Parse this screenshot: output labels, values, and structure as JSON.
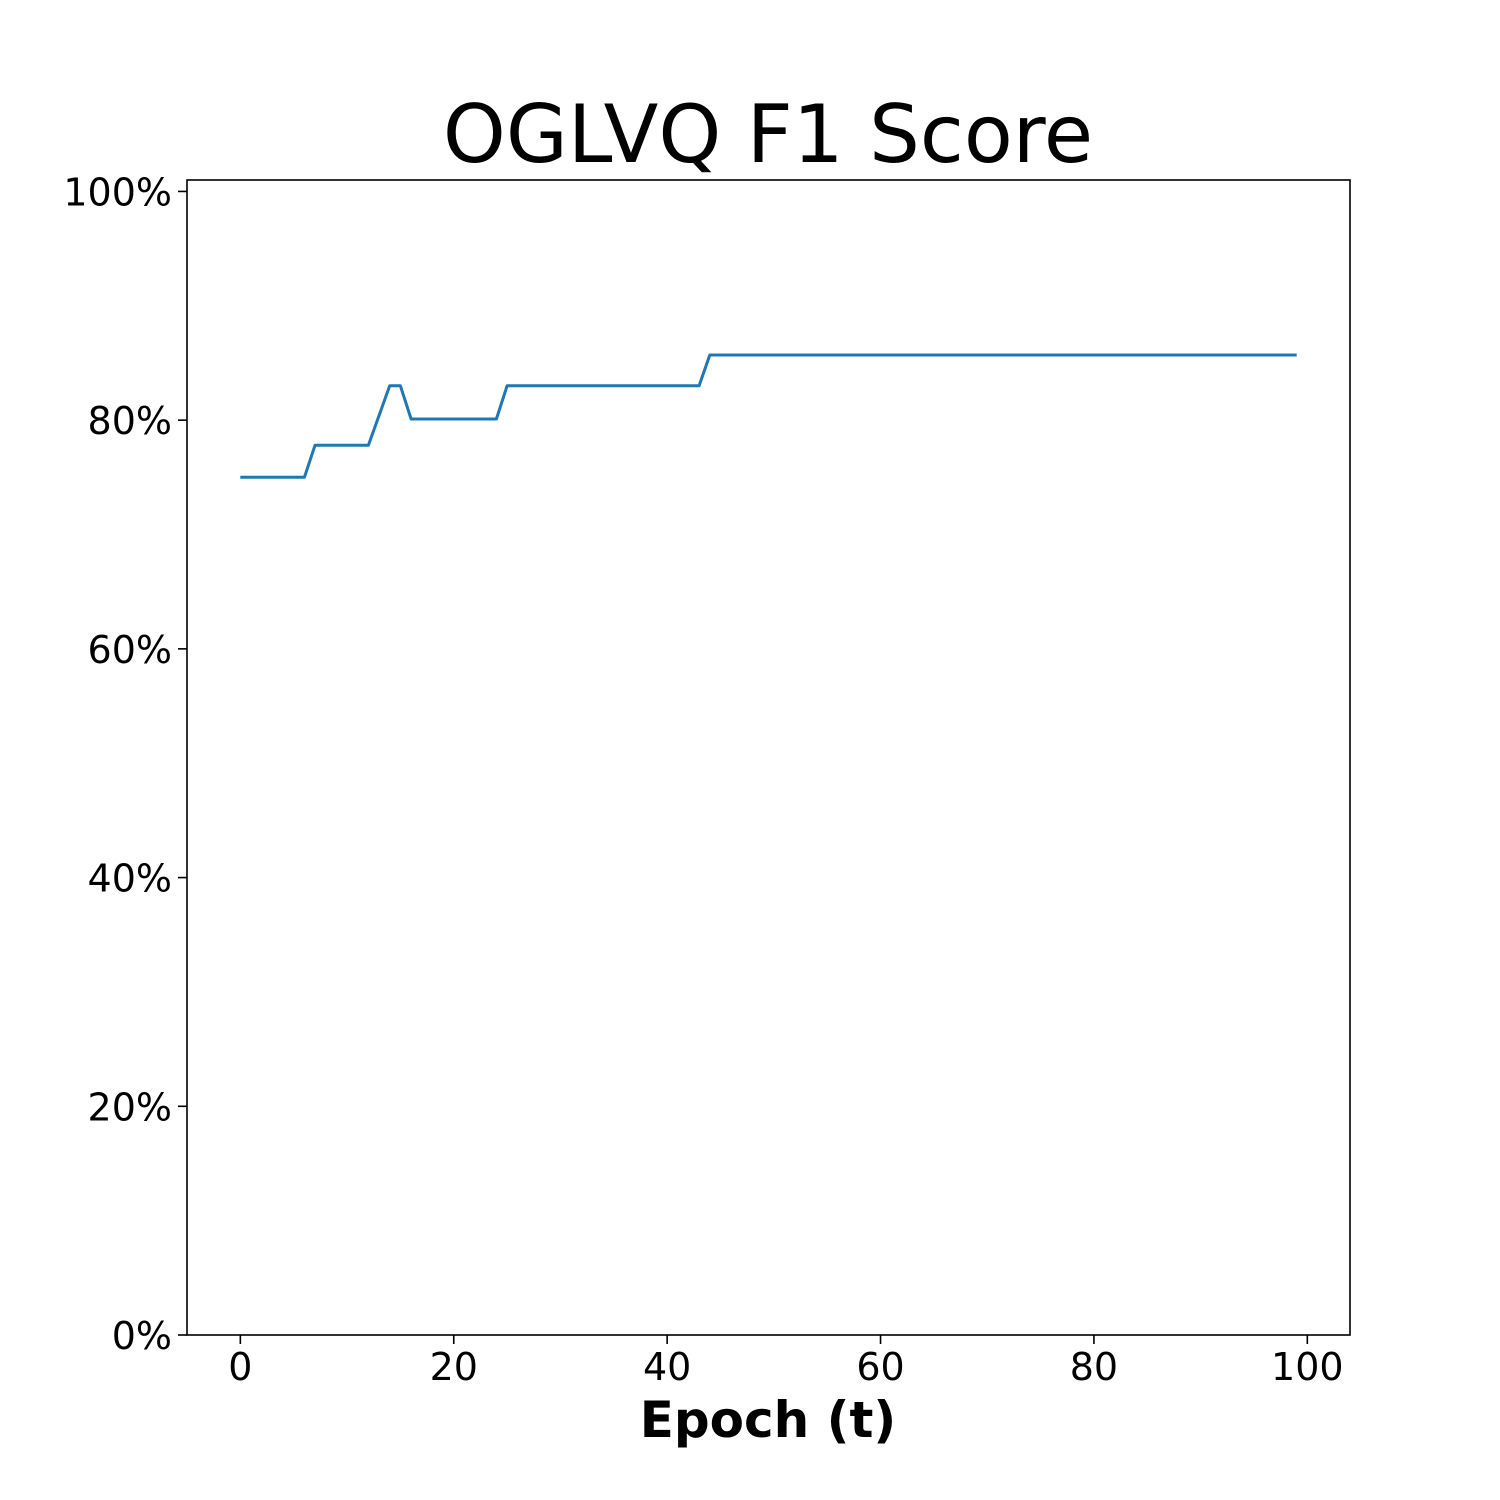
{
  "chart_data": {
    "type": "line",
    "title": "OGLVQ F1 Score",
    "xlabel": "Epoch (t)",
    "ylabel": "",
    "xlim": [
      -5,
      104
    ],
    "ylim": [
      0,
      101
    ],
    "x_ticks": [
      0,
      20,
      40,
      60,
      80,
      100
    ],
    "x_tick_labels": [
      "0",
      "20",
      "40",
      "60",
      "80",
      "100"
    ],
    "y_ticks": [
      0,
      20,
      40,
      60,
      80,
      100
    ],
    "y_tick_labels": [
      "0%",
      "20%",
      "40%",
      "60%",
      "80%",
      "100%"
    ],
    "grid": false,
    "legend": "none",
    "series": [
      {
        "color": "#1f77b4",
        "x": [
          0,
          6,
          7,
          12,
          14,
          15,
          16,
          24,
          25,
          43,
          44,
          99
        ],
        "y": [
          75.0,
          75.0,
          77.8,
          77.8,
          83.0,
          83.0,
          80.1,
          80.1,
          83.0,
          83.0,
          85.7,
          85.7
        ]
      }
    ]
  }
}
